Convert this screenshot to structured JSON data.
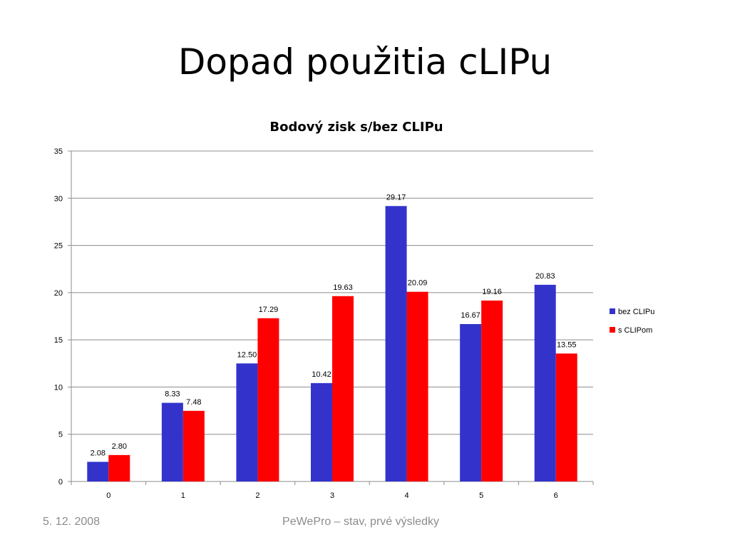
{
  "slide": {
    "title": "Dopad použitia cLIPu"
  },
  "footer": {
    "date": "5. 12. 2008",
    "center_text": "PeWePro – stav, prvé výsledky"
  },
  "chart_data": {
    "type": "bar",
    "title": "Bodový zisk s/bez CLIPu",
    "xlabel": "",
    "ylabel": "",
    "categories": [
      "0",
      "1",
      "2",
      "3",
      "4",
      "5",
      "6"
    ],
    "series": [
      {
        "name": "bez CLIPu",
        "color": "#3333cc",
        "values": [
          2.08,
          8.33,
          12.5,
          10.42,
          29.17,
          16.67,
          20.83
        ],
        "labels": [
          "2.08",
          "8.33",
          "12.50",
          "10.42",
          "29.17",
          "16.67",
          "20.83"
        ]
      },
      {
        "name": "s CLIPom",
        "color": "#ff0000",
        "values": [
          2.8,
          7.48,
          17.29,
          19.63,
          20.09,
          19.16,
          13.55
        ],
        "labels": [
          "2.80",
          "7.48",
          "17.29",
          "19.63",
          "20.09",
          "19.16",
          "13.55"
        ]
      }
    ],
    "ylim": [
      0,
      35
    ],
    "yticks": [
      "0",
      "5",
      "10",
      "15",
      "20",
      "25",
      "30",
      "35"
    ],
    "grid": true,
    "legend": "right"
  }
}
